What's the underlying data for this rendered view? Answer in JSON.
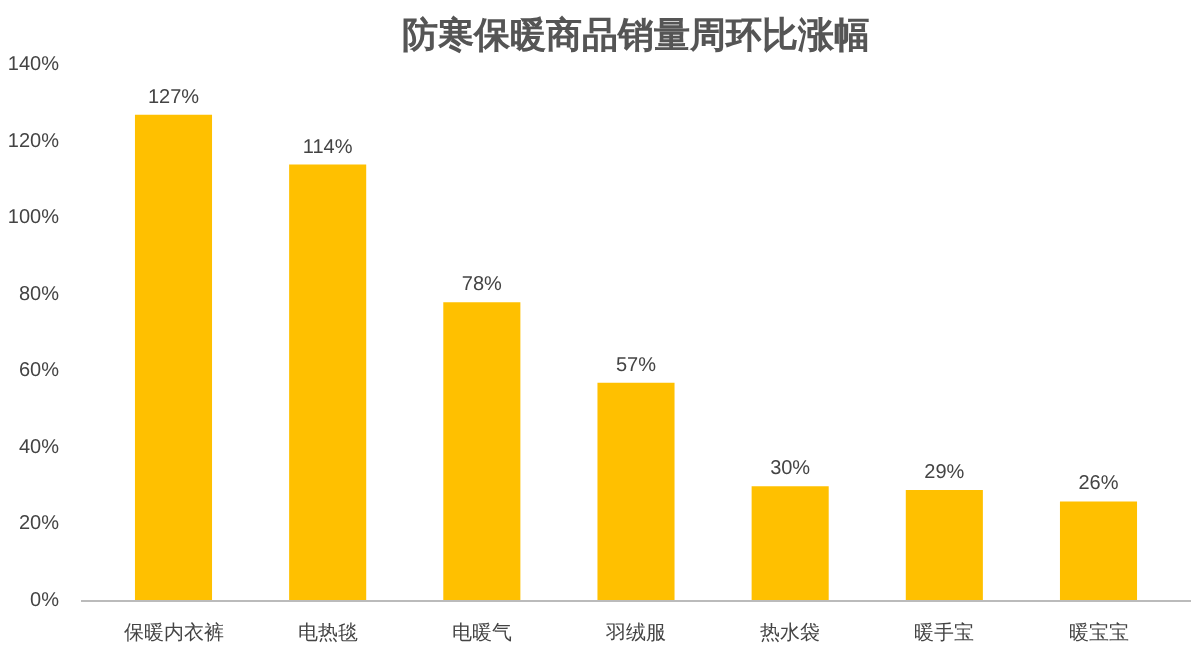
{
  "chart_data": {
    "type": "bar",
    "title": "防寒保暖商品销量周环比涨幅",
    "categories": [
      "保暖内衣裤",
      "电热毯",
      "电暖气",
      "羽绒服",
      "热水袋",
      "暖手宝",
      "暖宝宝"
    ],
    "values": [
      127,
      114,
      78,
      57,
      30,
      29,
      26
    ],
    "value_labels": [
      "127%",
      "114%",
      "78%",
      "57%",
      "30%",
      "29%",
      "26%"
    ],
    "color": "#ffc000",
    "ylim": [
      0,
      140
    ],
    "yticks": [
      {
        "value": 0,
        "label": "0%"
      },
      {
        "value": 20,
        "label": "20%"
      },
      {
        "value": 40,
        "label": "40%"
      },
      {
        "value": 60,
        "label": "60%"
      },
      {
        "value": 80,
        "label": "80%"
      },
      {
        "value": 100,
        "label": "100%"
      },
      {
        "value": 120,
        "label": "120%"
      },
      {
        "value": 140,
        "label": "140%"
      }
    ],
    "grid": false
  }
}
